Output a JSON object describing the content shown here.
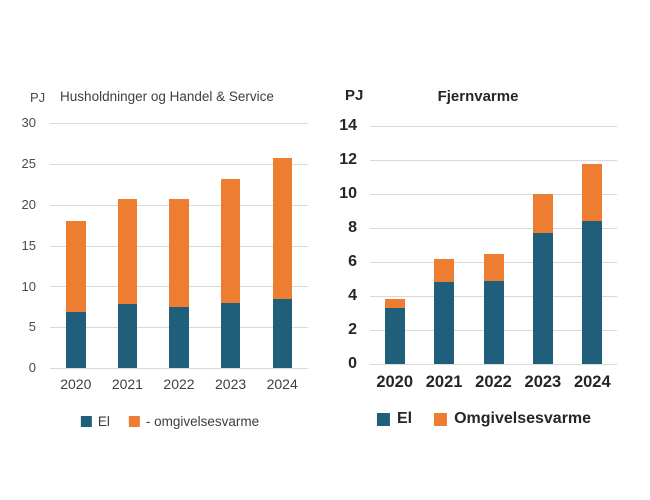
{
  "figure": {
    "background": "#ffffff",
    "gridline_color": "#d9d9d9",
    "accent_blue": "#1f5f7c",
    "accent_orange": "#ed7d31"
  },
  "chart_data": [
    {
      "type": "bar",
      "stacked": true,
      "title": "Husholdninger og Handel & Service",
      "unit_label": "PJ",
      "categories": [
        "2020",
        "2021",
        "2022",
        "2023",
        "2024"
      ],
      "series": [
        {
          "name": "El",
          "color": "#1f5f7c",
          "values": [
            6.9,
            7.8,
            7.5,
            8.0,
            8.4
          ]
        },
        {
          "name": "- omgivelsesvarme",
          "color": "#ed7d31",
          "values": [
            11.1,
            12.9,
            13.2,
            15.2,
            17.3
          ]
        }
      ],
      "totals": [
        18.0,
        20.7,
        20.7,
        23.2,
        25.7
      ],
      "ylim": [
        0,
        30
      ],
      "ytick_step": 5,
      "grid": true,
      "legend_position": "bottom"
    },
    {
      "type": "bar",
      "stacked": true,
      "title": "Fjernvarme",
      "unit_label": "PJ",
      "categories": [
        "2020",
        "2021",
        "2022",
        "2023",
        "2024"
      ],
      "series": [
        {
          "name": "El",
          "color": "#1f5f7c",
          "values": [
            3.3,
            4.8,
            4.9,
            7.7,
            8.4
          ]
        },
        {
          "name": "Omgivelsesvarme",
          "color": "#ed7d31",
          "values": [
            0.55,
            1.4,
            1.6,
            2.3,
            3.35
          ]
        }
      ],
      "totals": [
        3.85,
        6.2,
        6.5,
        10.0,
        11.75
      ],
      "ylim": [
        0,
        14
      ],
      "ytick_step": 2,
      "grid": true,
      "legend_position": "bottom"
    }
  ]
}
